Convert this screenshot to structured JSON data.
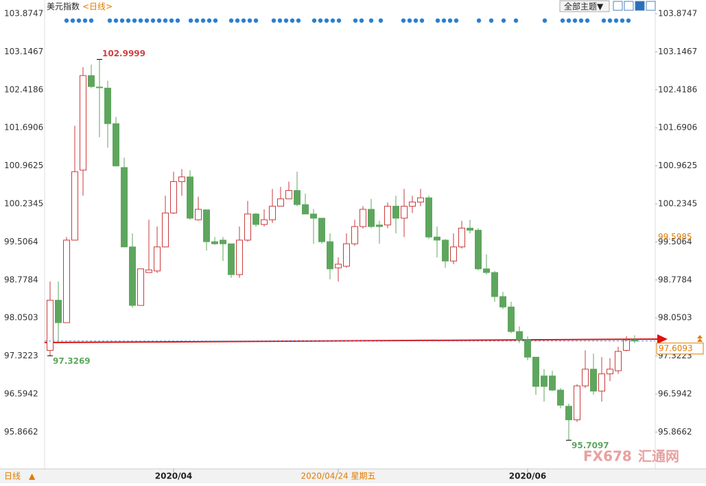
{
  "chart_data": {
    "type": "candlestick",
    "title": "美元指数",
    "period": "<日线>",
    "toolbar_button": "全部主题▼",
    "bottom_label": "日线",
    "watermark": [
      "FX678",
      "汇通网"
    ],
    "up_color": "#c8393b",
    "down_color": "#5ea65e",
    "categories": [
      null,
      null,
      null,
      null,
      null,
      null,
      null,
      null,
      null,
      null,
      null,
      null,
      null,
      null,
      null,
      null,
      null,
      null,
      null,
      null,
      null,
      null,
      null,
      null,
      null,
      null,
      null,
      null,
      null,
      null,
      null,
      null,
      null,
      null,
      null,
      null,
      null,
      null,
      null,
      null,
      null,
      null,
      null,
      null,
      null,
      null,
      null,
      null,
      null,
      null,
      null,
      null,
      null,
      null,
      null,
      null,
      null,
      null,
      null,
      null,
      null,
      null,
      null,
      null,
      null,
      null,
      null,
      null,
      null,
      null,
      null,
      null
    ],
    "open": [
      97.43,
      98.39,
      97.96,
      99.54,
      100.88,
      102.69,
      102.47,
      102.45,
      101.77,
      100.93,
      99.41,
      98.29,
      98.92,
      98.95,
      99.41,
      100.06,
      100.66,
      100.75,
      99.93,
      100.12,
      99.51,
      99.54,
      99.47,
      98.88,
      99.54,
      100.04,
      99.84,
      99.93,
      100.19,
      100.33,
      100.49,
      100.22,
      100.04,
      99.96,
      99.51,
      99.01,
      99.04,
      99.47,
      99.8,
      100.13,
      99.83,
      99.83,
      100.19,
      99.96,
      100.19,
      100.27,
      100.35,
      99.6,
      99.54,
      99.14,
      99.41,
      99.77,
      99.73,
      98.99,
      98.92,
      98.46,
      98.26,
      97.79,
      97.63,
      97.3,
      96.94,
      96.94,
      96.67,
      96.36,
      96.1,
      96.75,
      97.07,
      96.65,
      96.98,
      97.04,
      97.43,
      97.63
    ],
    "high": [
      98.75,
      98.75,
      99.6,
      101.73,
      102.85,
      102.9,
      102.9999,
      102.59,
      101.9,
      101.12,
      99.67,
      98.99,
      99.93,
      99.8,
      100.39,
      100.85,
      100.9,
      100.88,
      100.37,
      100.12,
      99.6,
      99.6,
      99.47,
      99.8,
      100.29,
      100.06,
      100.13,
      100.52,
      100.56,
      100.66,
      100.85,
      100.43,
      100.13,
      99.96,
      99.67,
      99.21,
      99.67,
      99.93,
      100.19,
      100.33,
      99.91,
      100.26,
      100.39,
      100.52,
      100.39,
      100.52,
      100.39,
      99.8,
      99.56,
      99.67,
      99.91,
      99.93,
      99.77,
      99.27,
      98.95,
      98.55,
      98.36,
      97.89,
      97.7,
      97.3,
      97.07,
      97.04,
      96.71,
      96.41,
      96.78,
      97.43,
      97.37,
      97.3,
      97.28,
      97.5,
      97.7,
      97.72
    ],
    "low": [
      97.3269,
      97.61,
      97.96,
      99.54,
      100.39,
      102.45,
      101.51,
      101.31,
      100.96,
      99.41,
      98.25,
      98.29,
      98.92,
      98.91,
      99.41,
      100.04,
      100.39,
      99.93,
      99.91,
      99.34,
      99.45,
      99.14,
      98.82,
      98.82,
      99.51,
      99.8,
      99.8,
      99.87,
      100.19,
      100.33,
      100.19,
      100.04,
      99.47,
      99.47,
      98.79,
      98.75,
      99.01,
      99.43,
      99.76,
      99.77,
      99.47,
      99.77,
      99.67,
      99.6,
      100.06,
      100.19,
      99.56,
      99.21,
      99.01,
      99.08,
      99.38,
      99.67,
      98.96,
      98.88,
      98.36,
      98.22,
      97.76,
      97.57,
      97.24,
      96.58,
      96.45,
      96.65,
      96.32,
      95.7097,
      96.06,
      96.71,
      96.58,
      96.45,
      96.84,
      96.98,
      97.41,
      97.57
    ],
    "close": [
      98.39,
      97.96,
      99.54,
      100.85,
      102.69,
      102.48,
      102.46,
      101.77,
      100.96,
      99.41,
      98.29,
      98.99,
      98.97,
      99.41,
      100.06,
      100.66,
      100.75,
      99.96,
      100.13,
      99.51,
      99.47,
      99.47,
      98.88,
      99.54,
      100.04,
      99.84,
      99.93,
      100.19,
      100.33,
      100.49,
      100.22,
      100.04,
      99.96,
      99.51,
      98.99,
      99.08,
      99.47,
      99.8,
      100.13,
      99.8,
      99.8,
      100.19,
      99.96,
      100.19,
      100.27,
      100.35,
      99.6,
      99.54,
      99.14,
      99.41,
      99.77,
      99.73,
      98.99,
      98.92,
      98.46,
      98.26,
      97.79,
      97.63,
      97.3,
      96.74,
      96.74,
      96.67,
      96.38,
      96.1,
      96.75,
      97.07,
      96.65,
      96.98,
      97.07,
      97.41,
      97.63,
      97.6093
    ],
    "ylim": [
      95.162,
      104.137
    ],
    "yticks": [
      103.8747,
      103.1467,
      102.4186,
      101.6906,
      100.9625,
      100.2345,
      99.5064,
      98.7784,
      98.0503,
      97.3223,
      96.5942,
      95.8662
    ],
    "xticks": [
      {
        "value": 15,
        "label": "2020/04"
      },
      {
        "value": 35,
        "label": "2020/04/24 星期五"
      },
      {
        "value": 58,
        "label": "2020/06"
      }
    ],
    "crosshair_price": 99.5985,
    "last_price": 97.6093
  }
}
